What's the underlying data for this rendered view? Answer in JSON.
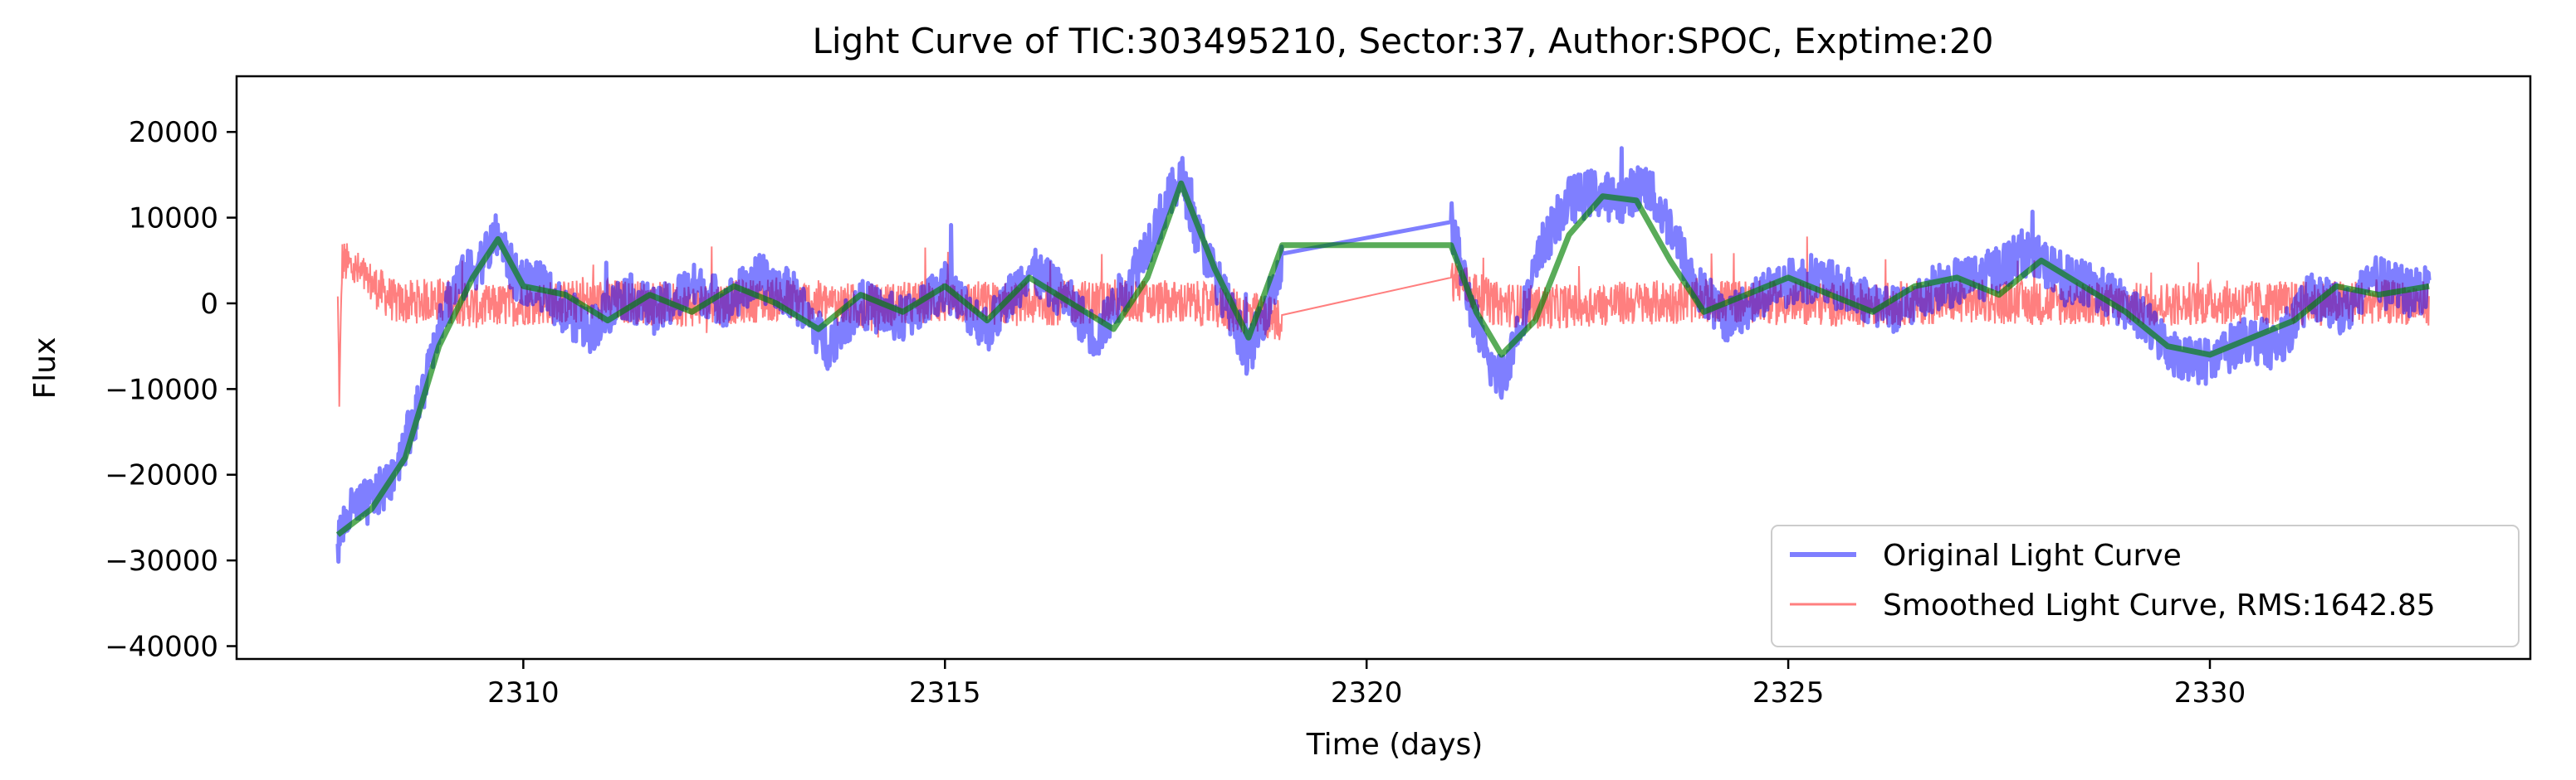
{
  "chart_data": {
    "type": "line",
    "title": "Light Curve of TIC:303495210, Sector:37, Author:SPOC, Exptime:20",
    "xlabel": "Time (days)",
    "ylabel": "Flux",
    "xlim": [
      2306.6,
      2333.8
    ],
    "ylim": [
      -41500,
      26500
    ],
    "xticks": [
      2310,
      2315,
      2320,
      2325,
      2330
    ],
    "yticks": [
      -40000,
      -30000,
      -20000,
      -10000,
      0,
      10000,
      20000
    ],
    "ytick_labels": [
      "−40000",
      "−30000",
      "−20000",
      "−10000",
      "0",
      "10000",
      "20000"
    ],
    "grid": false,
    "legend_position": "lower-right",
    "series": [
      {
        "name": "Original Light Curve",
        "color": "#0000ff",
        "x": [
          2307.8,
          2307.9,
          2308.0,
          2308.2,
          2308.4,
          2308.6,
          2308.8,
          2309.0,
          2309.2,
          2309.5,
          2309.7,
          2309.9,
          2310.2,
          2310.5,
          2310.8,
          2311.2,
          2311.6,
          2312.0,
          2312.4,
          2312.8,
          2313.2,
          2313.6,
          2314.0,
          2314.5,
          2315.0,
          2315.5,
          2316.0,
          2316.4,
          2316.8,
          2317.2,
          2317.5,
          2317.8,
          2318.0,
          2318.3,
          2318.6,
          2319.0,
          2321.0,
          2321.2,
          2321.4,
          2321.6,
          2321.8,
          2322.1,
          2322.4,
          2322.7,
          2323.0,
          2323.3,
          2323.6,
          2323.9,
          2324.3,
          2324.8,
          2325.3,
          2325.8,
          2326.3,
          2326.8,
          2327.3,
          2327.8,
          2328.3,
          2328.8,
          2329.2,
          2329.6,
          2330.0,
          2330.4,
          2330.8,
          2331.2,
          2331.6,
          2332.0,
          2332.4,
          2332.6
        ],
        "y": [
          -28000,
          -25000,
          -24000,
          -23000,
          -21000,
          -16000,
          -11000,
          -2000,
          2000,
          5000,
          8000,
          3000,
          2000,
          -1000,
          -3000,
          1000,
          -1000,
          2000,
          0,
          3000,
          1000,
          -5000,
          0,
          -2000,
          2000,
          -3000,
          4000,
          1000,
          -4000,
          3000,
          9000,
          15000,
          8000,
          1000,
          -6000,
          4500,
          9500,
          1000,
          -6000,
          -9000,
          -3000,
          7000,
          12000,
          13000,
          12000,
          14000,
          9000,
          2000,
          -2000,
          2000,
          3000,
          1000,
          -1000,
          2000,
          3000,
          6000,
          3000,
          1000,
          -2000,
          -6000,
          -7000,
          -4000,
          -5000,
          1000,
          -1000,
          3000,
          1000,
          2000
        ]
      },
      {
        "name": "Smoothed Light Curve, RMS:1642.85",
        "color": "#ff0000",
        "x": [
          2307.8,
          2307.82,
          2307.85,
          2308.5,
          2309.0,
          2309.5,
          2310.0,
          2311.0,
          2312.0,
          2313.0,
          2314.0,
          2315.0,
          2316.0,
          2317.0,
          2318.0,
          2319.0,
          2321.0,
          2321.5,
          2322.0,
          2323.0,
          2324.0,
          2325.0,
          2326.0,
          2327.0,
          2328.0,
          2329.0,
          2330.0,
          2331.0,
          2332.0,
          2332.6
        ],
        "y": [
          0,
          -11500,
          5000,
          0,
          500,
          -500,
          0,
          300,
          -200,
          500,
          -300,
          200,
          -100,
          300,
          0,
          -2000,
          3000,
          0,
          -500,
          0,
          300,
          0,
          -200,
          300,
          0,
          -200,
          100,
          0,
          200,
          0
        ]
      },
      {
        "name": "",
        "color": "#008000",
        "x": [
          2307.8,
          2308.2,
          2308.6,
          2309.0,
          2309.4,
          2309.7,
          2310.0,
          2310.5,
          2311.0,
          2311.5,
          2312.0,
          2312.5,
          2313.0,
          2313.5,
          2314.0,
          2314.5,
          2315.0,
          2315.5,
          2316.0,
          2316.5,
          2317.0,
          2317.4,
          2317.8,
          2318.2,
          2318.6,
          2319.0,
          2321.0,
          2321.3,
          2321.6,
          2322.0,
          2322.4,
          2322.8,
          2323.2,
          2323.6,
          2324.0,
          2324.5,
          2325.0,
          2325.5,
          2326.0,
          2326.5,
          2327.0,
          2327.5,
          2328.0,
          2328.5,
          2329.0,
          2329.5,
          2330.0,
          2330.5,
          2331.0,
          2331.5,
          2332.0,
          2332.6
        ],
        "y": [
          -27000,
          -24000,
          -18000,
          -5000,
          3000,
          7500,
          2000,
          1000,
          -2000,
          1000,
          -1000,
          2000,
          0,
          -3000,
          1000,
          -1000,
          2000,
          -2000,
          3000,
          0,
          -3000,
          3000,
          14000,
          4000,
          -4000,
          6800,
          6800,
          -1000,
          -6000,
          -2000,
          8000,
          12500,
          12000,
          5000,
          -1000,
          1000,
          3000,
          1000,
          -1000,
          2000,
          3000,
          1000,
          5000,
          2000,
          -1000,
          -5000,
          -6000,
          -4000,
          -2000,
          2000,
          1000,
          2000
        ]
      }
    ]
  }
}
